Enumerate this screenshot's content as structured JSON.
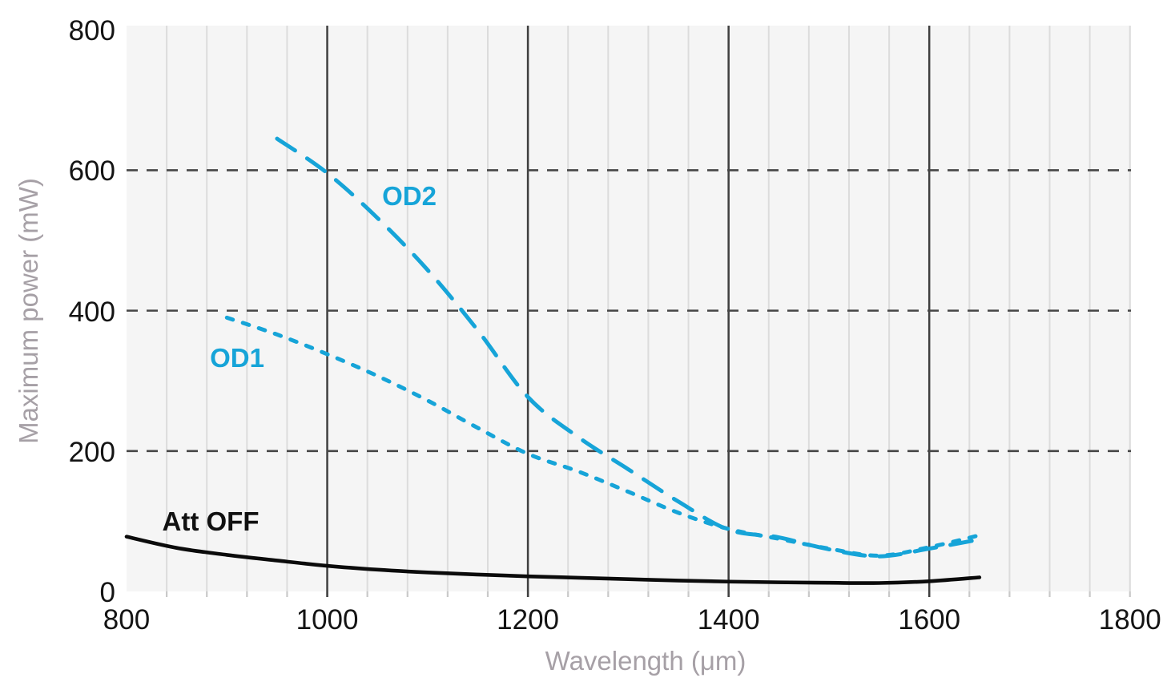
{
  "figure": {
    "background": "#ffffff",
    "plot_background": "#f5f5f5"
  },
  "chart_data": {
    "type": "line",
    "title": "",
    "xlabel": "Wavelength (μm)",
    "ylabel": "Maximum power (mW)",
    "xlim": [
      800,
      1801
    ],
    "ylim": [
      0,
      806
    ],
    "xticks": [
      800,
      1000,
      1200,
      1400,
      1600,
      1800
    ],
    "yticks": [
      0,
      200,
      400,
      600,
      800
    ],
    "x_minor_step": 40,
    "x_major_gridlines": [
      1000,
      1200,
      1400,
      1600
    ],
    "y_dashed_gridlines": [
      200,
      400,
      600
    ],
    "grid": "vertical minor light solid, vertical major dark solid, horizontal dashed",
    "legend_position": "inline annotations next to curves",
    "colors": {
      "accent_cyan": "#16a4d8",
      "line_black": "#0b0b0b",
      "grid_minor": "#dcdcdc",
      "grid_major": "#3f3f3f",
      "grid_dashed": "#474747",
      "tick_minor": "#c9c9c9",
      "tick_major": "#555555",
      "axis_text": "#141414",
      "axis_title_gray": "#a6a0a6"
    },
    "series": [
      {
        "name": "Att OFF",
        "style": "solid",
        "color": "#0b0b0b",
        "points": [
          [
            800,
            78
          ],
          [
            850,
            62
          ],
          [
            900,
            52
          ],
          [
            950,
            44
          ],
          [
            1000,
            36.5
          ],
          [
            1050,
            31
          ],
          [
            1100,
            27
          ],
          [
            1150,
            24
          ],
          [
            1200,
            21.5
          ],
          [
            1250,
            19.5
          ],
          [
            1300,
            17.5
          ],
          [
            1350,
            15.5
          ],
          [
            1400,
            14
          ],
          [
            1450,
            13
          ],
          [
            1500,
            12.3
          ],
          [
            1550,
            12
          ],
          [
            1600,
            14.5
          ],
          [
            1650,
            20
          ]
        ]
      },
      {
        "name": "OD1",
        "style": "dot",
        "color": "#16a4d8",
        "points": [
          [
            900,
            390
          ],
          [
            950,
            366
          ],
          [
            1000,
            338
          ],
          [
            1050,
            307
          ],
          [
            1100,
            272
          ],
          [
            1150,
            233
          ],
          [
            1200,
            196
          ],
          [
            1250,
            171
          ],
          [
            1300,
            142
          ],
          [
            1350,
            112
          ],
          [
            1400,
            89
          ],
          [
            1450,
            75
          ],
          [
            1500,
            61
          ],
          [
            1550,
            51
          ],
          [
            1600,
            63
          ],
          [
            1650,
            80
          ]
        ]
      },
      {
        "name": "OD2",
        "style": "dash",
        "color": "#16a4d8",
        "points": [
          [
            950,
            645
          ],
          [
            1000,
            596
          ],
          [
            1050,
            532
          ],
          [
            1100,
            458
          ],
          [
            1150,
            372
          ],
          [
            1200,
            277
          ],
          [
            1250,
            220
          ],
          [
            1300,
            174
          ],
          [
            1350,
            128
          ],
          [
            1400,
            88
          ],
          [
            1450,
            77
          ],
          [
            1500,
            60
          ],
          [
            1550,
            50
          ],
          [
            1600,
            61
          ],
          [
            1650,
            74
          ]
        ]
      }
    ]
  }
}
